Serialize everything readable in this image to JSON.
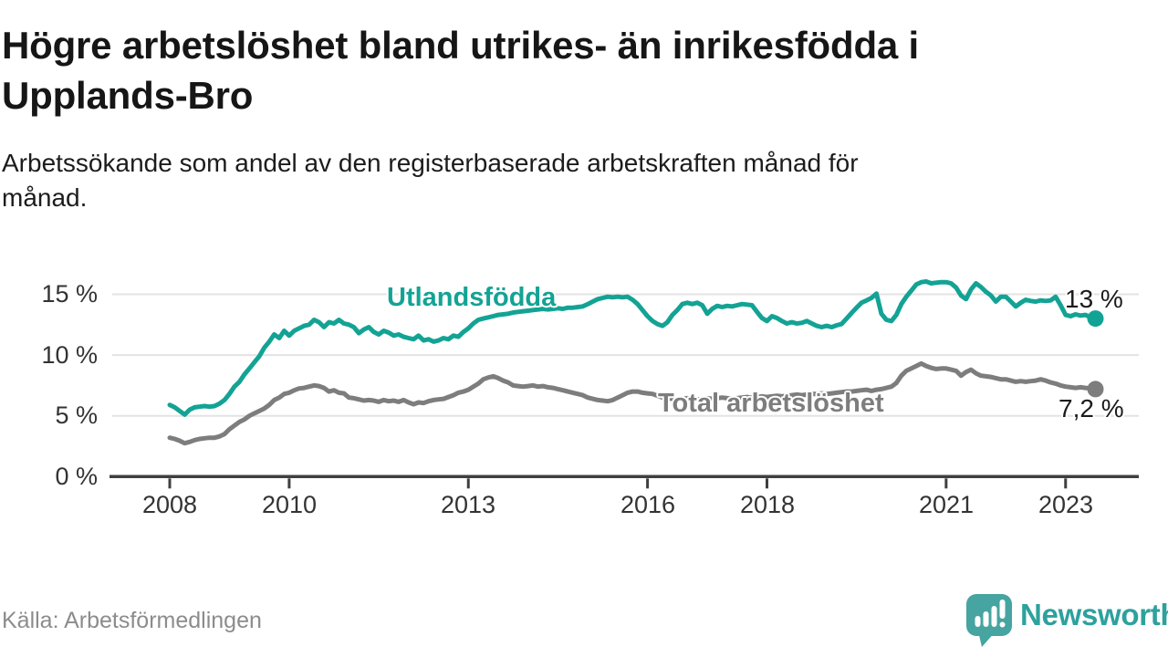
{
  "title_lines": [
    "Högre arbetslöshet bland utrikes- än inrikesfödda i",
    "Upplands-Bro"
  ],
  "subtitle_lines": [
    "Arbetssökande som andel av den registerbaserade arbetskraften månad för",
    "månad."
  ],
  "source": "Källa: Arbetsförmedlingen",
  "branding": {
    "wordmark": "Newsworthy",
    "icon": "newsworthy-chart-speech-bubble-icon",
    "icon_color": "#46a4a1",
    "wordmark_color": "#2da19d"
  },
  "colors": {
    "foreign_born_line": "#13a395",
    "total_line": "#7d7d7d",
    "grid": "#e3e3e3",
    "axis": "#3f3f3f",
    "tick_text": "#333333",
    "title_text": "#161616",
    "end_label_text": "#1b1b1b",
    "muted_text": "#8c8c8c"
  },
  "chart_data": {
    "type": "line",
    "unit": "%",
    "frequency": "monthly",
    "x_start": "2008-01",
    "x_end": "2023-07",
    "grid": "horizontal",
    "legend_position": "inline-labels",
    "x_ticks": [
      "2008",
      "2010",
      "2013",
      "2016",
      "2018",
      "2021",
      "2023"
    ],
    "y_ticks": [
      "0 %",
      "5 %",
      "10 %",
      "15 %"
    ],
    "ylim": [
      0,
      17
    ],
    "series": [
      {
        "name": "Utlandsfödda",
        "color": "#13a395",
        "end_label": "13 %",
        "end_value": 13.0,
        "values": [
          5.9,
          5.7,
          5.4,
          5.1,
          5.5,
          5.7,
          5.75,
          5.8,
          5.75,
          5.8,
          6.0,
          6.3,
          6.8,
          7.4,
          7.8,
          8.4,
          8.9,
          9.4,
          9.9,
          10.6,
          11.1,
          11.7,
          11.4,
          12.0,
          11.6,
          12.0,
          12.2,
          12.4,
          12.5,
          12.9,
          12.7,
          12.3,
          12.7,
          12.6,
          12.9,
          12.6,
          12.5,
          12.3,
          11.8,
          12.1,
          12.3,
          11.9,
          11.7,
          12.0,
          11.85,
          11.6,
          11.7,
          11.5,
          11.4,
          11.3,
          11.6,
          11.2,
          11.3,
          11.1,
          11.2,
          11.4,
          11.3,
          11.6,
          11.5,
          11.9,
          12.2,
          12.6,
          12.9,
          13.0,
          13.1,
          13.2,
          13.3,
          13.35,
          13.4,
          13.5,
          13.55,
          13.6,
          13.65,
          13.7,
          13.75,
          13.8,
          13.75,
          13.8,
          13.85,
          13.8,
          13.9,
          13.9,
          13.95,
          14.0,
          14.2,
          14.4,
          14.6,
          14.7,
          14.8,
          14.75,
          14.8,
          14.75,
          14.8,
          14.55,
          14.2,
          13.7,
          13.2,
          12.8,
          12.55,
          12.4,
          12.7,
          13.3,
          13.7,
          14.2,
          14.3,
          14.2,
          14.3,
          14.1,
          13.4,
          13.8,
          14.05,
          13.95,
          14.05,
          14.0,
          14.1,
          14.2,
          14.15,
          14.1,
          13.55,
          13.05,
          12.8,
          13.2,
          13.05,
          12.8,
          12.6,
          12.7,
          12.6,
          12.65,
          12.8,
          12.6,
          12.4,
          12.3,
          12.4,
          12.3,
          12.45,
          12.55,
          13.0,
          13.45,
          13.9,
          14.3,
          14.5,
          14.7,
          15.05,
          13.4,
          12.9,
          12.8,
          13.3,
          14.2,
          14.8,
          15.3,
          15.8,
          16.0,
          16.05,
          15.9,
          15.95,
          16.0,
          16.0,
          15.9,
          15.55,
          14.9,
          14.6,
          15.4,
          15.9,
          15.6,
          15.2,
          14.9,
          14.4,
          14.8,
          14.8,
          14.4,
          14.0,
          14.3,
          14.55,
          14.45,
          14.4,
          14.5,
          14.45,
          14.5,
          14.8,
          14.1,
          13.3,
          13.2,
          13.35,
          13.25,
          13.3,
          13.1,
          13.0
        ]
      },
      {
        "name": "Total arbetslöshet",
        "color": "#7d7d7d",
        "end_label": "7,2 %",
        "end_value": 7.2,
        "values": [
          3.2,
          3.1,
          2.95,
          2.75,
          2.85,
          3.0,
          3.1,
          3.15,
          3.2,
          3.2,
          3.3,
          3.5,
          3.9,
          4.2,
          4.5,
          4.7,
          5.0,
          5.2,
          5.4,
          5.6,
          5.9,
          6.3,
          6.5,
          6.8,
          6.9,
          7.1,
          7.25,
          7.3,
          7.4,
          7.5,
          7.45,
          7.3,
          7.0,
          7.1,
          6.9,
          6.85,
          6.5,
          6.45,
          6.35,
          6.25,
          6.3,
          6.25,
          6.15,
          6.3,
          6.2,
          6.25,
          6.15,
          6.3,
          6.1,
          5.95,
          6.1,
          6.05,
          6.2,
          6.3,
          6.35,
          6.4,
          6.55,
          6.7,
          6.9,
          7.0,
          7.15,
          7.4,
          7.65,
          8.0,
          8.15,
          8.25,
          8.1,
          7.9,
          7.75,
          7.5,
          7.45,
          7.4,
          7.45,
          7.5,
          7.4,
          7.45,
          7.35,
          7.3,
          7.2,
          7.1,
          7.0,
          6.9,
          6.8,
          6.7,
          6.5,
          6.4,
          6.3,
          6.25,
          6.2,
          6.3,
          6.5,
          6.7,
          6.9,
          7.0,
          7.0,
          6.9,
          6.85,
          6.8,
          6.65,
          6.5,
          6.45,
          6.4,
          6.35,
          6.4,
          6.45,
          6.4,
          6.35,
          6.4,
          6.45,
          6.4,
          6.45,
          6.5,
          6.45,
          6.4,
          6.45,
          6.5,
          6.55,
          6.5,
          6.55,
          6.6,
          6.55,
          6.6,
          6.65,
          6.6,
          6.65,
          6.7,
          6.75,
          6.7,
          6.75,
          6.8,
          6.8,
          6.85,
          6.8,
          6.85,
          6.9,
          6.95,
          7.0,
          7.0,
          7.05,
          7.1,
          7.15,
          7.05,
          7.15,
          7.2,
          7.3,
          7.4,
          7.7,
          8.3,
          8.7,
          8.9,
          9.1,
          9.3,
          9.1,
          8.95,
          8.85,
          8.9,
          8.9,
          8.8,
          8.7,
          8.3,
          8.6,
          8.8,
          8.5,
          8.3,
          8.25,
          8.2,
          8.1,
          8.0,
          8.0,
          7.9,
          7.8,
          7.85,
          7.8,
          7.85,
          7.9,
          8.0,
          7.9,
          7.75,
          7.65,
          7.5,
          7.4,
          7.35,
          7.3,
          7.35,
          7.3,
          7.25,
          7.2
        ]
      }
    ]
  }
}
